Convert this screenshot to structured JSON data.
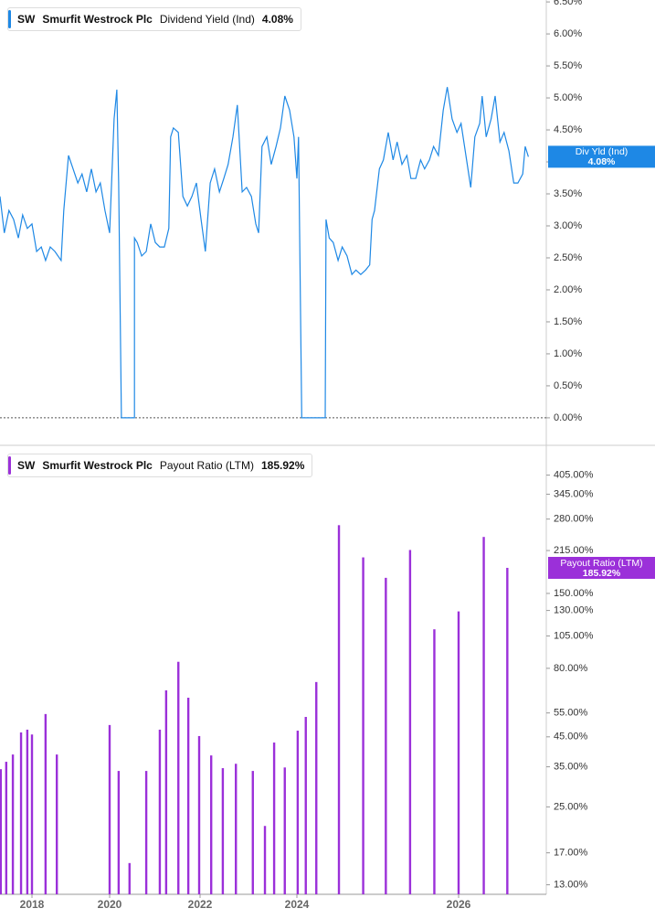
{
  "chart_data": [
    {
      "type": "line",
      "ticker": "SW",
      "company": "Smurfit Westrock Plc",
      "title": "Dividend Yield (Ind)",
      "last_label": "4.08%",
      "flag_label": "Div Yld (Ind)",
      "color": "#1e88e5",
      "log": false,
      "zero_line": true,
      "xlim": [
        2017.18,
        2027.08
      ],
      "ylim": [
        -0.43,
        6.53
      ],
      "yticks": [
        {
          "value": 0,
          "label": "0.00%"
        },
        {
          "value": 0.5,
          "label": "0.50%"
        },
        {
          "value": 1,
          "label": "1.00%"
        },
        {
          "value": 1.5,
          "label": "1.50%"
        },
        {
          "value": 2,
          "label": "2.00%"
        },
        {
          "value": 2.5,
          "label": "2.50%"
        },
        {
          "value": 3,
          "label": "3.00%"
        },
        {
          "value": 3.5,
          "label": "3.50%"
        },
        {
          "value": 4,
          "label": "4.00%"
        },
        {
          "value": 4.5,
          "label": "4.50%"
        },
        {
          "value": 5,
          "label": "5.00%"
        },
        {
          "value": 5.5,
          "label": "5.50%"
        },
        {
          "value": 6,
          "label": "6.00%"
        },
        {
          "value": 6.5,
          "label": "6.50%"
        }
      ],
      "x": [
        2017.18,
        2017.29,
        2017.41,
        2017.53,
        2017.65,
        2017.76,
        2017.88,
        2018.0,
        2018.12,
        2018.24,
        2018.35,
        2018.47,
        2018.59,
        2018.75,
        2018.82,
        2018.94,
        2019.06,
        2019.18,
        2019.29,
        2019.41,
        2019.53,
        2019.65,
        2019.76,
        2019.88,
        2020.0,
        2020.1,
        2020.16,
        2020.2,
        2020.26,
        2020.55,
        2020.55,
        2020.61,
        2020.71,
        2020.81,
        2020.91,
        2021.01,
        2021.11,
        2021.21,
        2021.31,
        2021.35,
        2021.41,
        2021.52,
        2021.62,
        2021.72,
        2021.82,
        2021.92,
        2022.02,
        2022.11,
        2022.21,
        2022.3,
        2022.4,
        2022.49,
        2022.58,
        2022.68,
        2022.77,
        2022.87,
        2022.96,
        2023.06,
        2023.15,
        2023.21,
        2023.28,
        2023.38,
        2023.47,
        2023.57,
        2023.66,
        2023.75,
        2023.85,
        2023.94,
        2024.0,
        2024.02,
        2024.06,
        2024.35,
        2024.36,
        2024.4,
        2024.45,
        2024.51,
        2024.56,
        2024.62,
        2024.68,
        2024.73,
        2024.79,
        2024.85,
        2024.9,
        2024.93,
        2024.96,
        2025.02,
        2025.07,
        2025.13,
        2025.19,
        2025.24,
        2025.3,
        2025.36,
        2025.41,
        2025.47,
        2025.53,
        2025.58,
        2025.64,
        2025.69,
        2025.75,
        2025.81,
        2025.86,
        2025.92,
        2025.98,
        2026.03,
        2026.09,
        2026.15,
        2026.2,
        2026.26,
        2026.29,
        2026.34,
        2026.4,
        2026.45,
        2026.51,
        2026.56,
        2026.62,
        2026.68,
        2026.73,
        2026.79,
        2026.82,
        2026.86
      ],
      "values": [
        3.46,
        2.89,
        3.24,
        3.1,
        2.81,
        3.17,
        2.96,
        3.03,
        2.6,
        2.67,
        2.46,
        2.67,
        2.6,
        2.46,
        3.24,
        4.1,
        3.89,
        3.67,
        3.81,
        3.53,
        3.89,
        3.53,
        3.67,
        3.24,
        2.89,
        4.67,
        5.13,
        3.67,
        0,
        0,
        2.81,
        2.74,
        2.53,
        2.6,
        3.03,
        2.74,
        2.67,
        2.67,
        2.96,
        4.39,
        4.53,
        4.46,
        3.46,
        3.31,
        3.46,
        3.67,
        3.1,
        2.6,
        3.67,
        3.89,
        3.53,
        3.74,
        3.96,
        4.39,
        4.89,
        3.53,
        3.6,
        3.46,
        3.03,
        2.89,
        4.24,
        4.39,
        3.96,
        4.24,
        4.53,
        5.03,
        4.81,
        4.39,
        3.74,
        4.39,
        0,
        0,
        3.1,
        2.81,
        2.74,
        2.46,
        2.67,
        2.53,
        2.24,
        2.31,
        2.24,
        2.31,
        2.39,
        3.1,
        3.24,
        3.89,
        4.03,
        4.46,
        4.03,
        4.31,
        3.96,
        4.1,
        3.74,
        3.74,
        4.03,
        3.89,
        4.03,
        4.24,
        4.1,
        4.81,
        5.17,
        4.67,
        4.46,
        4.6,
        4.1,
        3.6,
        4.39,
        4.6,
        5.03,
        4.39,
        4.67,
        5.03,
        4.31,
        4.46,
        4.17,
        3.67,
        3.67,
        3.81,
        4.24,
        4.08
      ]
    },
    {
      "type": "bar",
      "ticker": "SW",
      "company": "Smurfit Westrock Plc",
      "title": "Payout Ratio (LTM)",
      "last_label": "185.92%",
      "flag_label": "Payout Ratio (LTM)",
      "color": "#9b30d9",
      "log": true,
      "xlim": [
        2017.18,
        2027.08
      ],
      "xticks": [
        2018,
        2020,
        2022,
        2024,
        2026
      ],
      "ylim": [
        12,
        520
      ],
      "yticks": [
        {
          "value": 13,
          "label": "13.00%"
        },
        {
          "value": 17,
          "label": "17.00%"
        },
        {
          "value": 25,
          "label": "25.00%"
        },
        {
          "value": 35,
          "label": "35.00%"
        },
        {
          "value": 45,
          "label": "45.00%"
        },
        {
          "value": 55,
          "label": "55.00%"
        },
        {
          "value": 80,
          "label": "80.00%"
        },
        {
          "value": 105,
          "label": "105.00%"
        },
        {
          "value": 130,
          "label": "130.00%"
        },
        {
          "value": 150,
          "label": "150.00%"
        },
        {
          "value": 215,
          "label": "215.00%"
        },
        {
          "value": 280,
          "label": "280.00%"
        },
        {
          "value": 345,
          "label": "345.00%"
        },
        {
          "value": 405,
          "label": "405.00%"
        }
      ],
      "x": [
        2017.2,
        2017.34,
        2017.51,
        2017.72,
        2017.88,
        2018.0,
        2018.35,
        2018.64,
        2020.0,
        2020.2,
        2020.44,
        2020.81,
        2021.11,
        2021.25,
        2021.52,
        2021.74,
        2021.98,
        2022.23,
        2022.47,
        2022.74,
        2023.09,
        2023.34,
        2023.53,
        2023.75,
        2024.01,
        2024.11,
        2024.24,
        2024.52,
        2024.82,
        2025.1,
        2025.4,
        2025.7,
        2026.0,
        2026.31,
        2026.6
      ],
      "values": [
        34.3,
        36.5,
        38.8,
        46.7,
        47.8,
        45.9,
        54.5,
        38.8,
        49.7,
        33.8,
        15.6,
        33.8,
        47.8,
        66.5,
        84.5,
        62.5,
        45.3,
        38.5,
        34.6,
        35.9,
        33.8,
        21.3,
        42.9,
        34.8,
        47.4,
        53.2,
        71.3,
        266,
        203,
        171,
        216,
        111,
        129,
        241,
        185.92
      ]
    }
  ]
}
